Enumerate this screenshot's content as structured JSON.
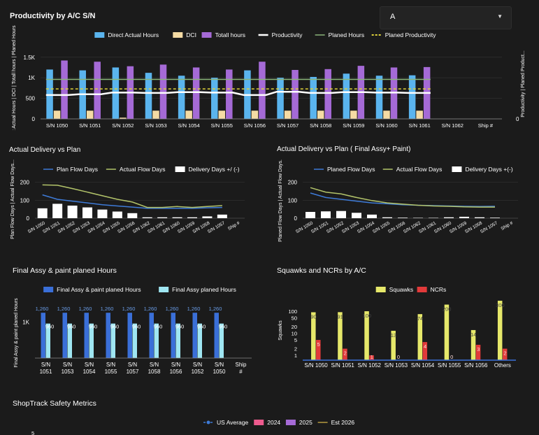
{
  "select": {
    "value": "A"
  },
  "panels": {
    "productivity": {
      "title": "Productivity by A/C S/N"
    },
    "delivery": {
      "title": "Actual Delivery vs Plan"
    },
    "delivery_final": {
      "title": "Actual Delivery vs Plan ( Final Assy+ Paint)"
    },
    "final_assy": {
      "title": "Final Assy & paint planed Hours"
    },
    "squawks": {
      "title": "Squawks and NCRs by A/C"
    },
    "safety": {
      "title": "ShopTrack Safety Metrics"
    }
  },
  "colors": {
    "blue": "#5ab4ee",
    "beige": "#f5dba4",
    "purple": "#a56ad6",
    "green": "#8ab57a",
    "yellow": "#e0d33b",
    "darkblue": "#3a6fd8",
    "lightblue": "#9fe6f2",
    "red": "#e23a3a",
    "pink": "#ee5b8e",
    "gold": "#b59a40"
  },
  "chart_data": [
    {
      "id": "productivity",
      "type": "bar",
      "categories": [
        "S/N 1050",
        "S/N 1051",
        "S/N 1052",
        "S/N 1053",
        "S/N 1054",
        "S/N 1055",
        "S/N 1056",
        "S/N 1057",
        "S/N 1058",
        "S/N 1059",
        "S/N 1060",
        "S/N 1061",
        "S/N 1062",
        "Ship #"
      ],
      "series": [
        {
          "name": "Direct Actual Hours",
          "kind": "bar",
          "values": [
            1200,
            1180,
            1250,
            1120,
            1050,
            1000,
            1180,
            1000,
            1020,
            1100,
            1050,
            1060,
            null,
            null
          ]
        },
        {
          "name": "DCI",
          "kind": "bar",
          "values": [
            200,
            200,
            30,
            200,
            200,
            200,
            200,
            200,
            200,
            200,
            200,
            200,
            null,
            null
          ]
        },
        {
          "name": "Totall hours",
          "kind": "bar",
          "values": [
            1420,
            1390,
            1280,
            1320,
            1250,
            1200,
            1390,
            1190,
            1210,
            1290,
            1250,
            1260,
            null,
            null
          ]
        },
        {
          "name": "Productivity",
          "kind": "line",
          "values": [
            580,
            600,
            640,
            630,
            650,
            640,
            580,
            660,
            630,
            650,
            640,
            630,
            null,
            null
          ]
        },
        {
          "name": "Planed Hours",
          "kind": "line",
          "values": [
            960,
            960,
            960,
            960,
            960,
            960,
            960,
            960,
            960,
            960,
            960,
            960,
            null,
            null
          ]
        },
        {
          "name": "Planed Productivity",
          "kind": "dash",
          "values": [
            730,
            730,
            730,
            730,
            730,
            730,
            730,
            730,
            730,
            730,
            730,
            730,
            null,
            null
          ]
        }
      ],
      "y_ticks": [
        "0",
        "500",
        "1K",
        "1.5K"
      ],
      "ylim": [
        0,
        1700
      ],
      "ylabel": "Direct Actual Hours | DCI | Totall hours | Planed Hours",
      "y2label": "Productivity | Planed Product...",
      "y2_ticks": [
        "0"
      ]
    },
    {
      "id": "delivery",
      "type": "line",
      "categories": [
        "S/N 1050",
        "S/N 1051",
        "S/N 1052",
        "S/N 1053",
        "S/N 1054",
        "S/N 1055",
        "S/N 1056",
        "S/N 1062",
        "S/N 1061",
        "S/N 1060",
        "S/N 1059",
        "S/N 1058",
        "S/N 1057",
        "Ship #"
      ],
      "series": [
        {
          "name": "Plan Flow Days",
          "kind": "line",
          "values": [
            130,
            105,
            95,
            85,
            75,
            68,
            62,
            55,
            55,
            55,
            55,
            58,
            60,
            null
          ]
        },
        {
          "name": "Actual Flow Days",
          "kind": "line",
          "values": [
            185,
            183,
            165,
            145,
            125,
            105,
            90,
            60,
            60,
            65,
            60,
            65,
            70,
            null
          ]
        },
        {
          "name": "Delivery Days +/ (-)",
          "kind": "bar",
          "values": [
            55,
            80,
            70,
            60,
            48,
            37,
            28,
            5,
            5,
            5,
            5,
            10,
            20,
            null
          ]
        }
      ],
      "y_ticks": [
        "0",
        "100",
        "200"
      ],
      "ylim": [
        0,
        210
      ],
      "ylabel": "Plan Flow Days | Actual Flow Days..."
    },
    {
      "id": "delivery_final",
      "type": "line",
      "categories": [
        "S/N 1050",
        "S/N 1051",
        "S/N 1052",
        "S/N 1053",
        "S/N 1054",
        "S/N 1055",
        "S/N 1056",
        "S/N 1062",
        "S/N 1061",
        "S/N 1060",
        "S/N 1059",
        "S/N 1058",
        "S/N 1057",
        "Ship #"
      ],
      "series": [
        {
          "name": "Planed Flow Days",
          "kind": "line",
          "values": [
            140,
            115,
            105,
            95,
            85,
            80,
            75,
            72,
            70,
            68,
            66,
            65,
            66,
            null
          ]
        },
        {
          "name": "Actual Flow Days",
          "kind": "line",
          "values": [
            170,
            145,
            135,
            115,
            98,
            85,
            78,
            72,
            68,
            66,
            63,
            62,
            62,
            null
          ]
        },
        {
          "name": "Delivery Days +(-)",
          "kind": "bar",
          "values": [
            35,
            38,
            40,
            30,
            20,
            5,
            3,
            2,
            2,
            5,
            8,
            5,
            3,
            null
          ]
        }
      ],
      "y_ticks": [
        "0",
        "100",
        "200"
      ],
      "ylim": [
        0,
        210
      ],
      "ylabel": "Planed Flow Days | Actual Flow Days..."
    },
    {
      "id": "final_assy",
      "type": "bar",
      "categories": [
        "S/N 1051",
        "S/N 1053",
        "S/N 1054",
        "S/N 1055",
        "S/N 1057",
        "S/N 1058",
        "S/N 1056",
        "S/N 1052",
        "S/N 1050",
        "Ship #"
      ],
      "series": [
        {
          "name": "Final Assy & paint planed Hours",
          "values": [
            1260,
            1260,
            1260,
            1260,
            1260,
            1260,
            1260,
            1260,
            1260,
            null
          ]
        },
        {
          "name": "Final Assy planed Hours",
          "values": [
            960,
            960,
            960,
            960,
            960,
            960,
            960,
            960,
            960,
            null
          ]
        }
      ],
      "data_labels": [
        [
          "1,260",
          "960"
        ],
        [
          "1,260",
          "960"
        ],
        [
          "1,260",
          "960"
        ],
        [
          "1,260",
          "960"
        ],
        [
          "1,260",
          "960"
        ],
        [
          "1,260",
          "960"
        ],
        [
          "1,260",
          "960"
        ],
        [
          "1,260",
          "960"
        ],
        [
          "1,260",
          "960"
        ],
        [
          "",
          ""
        ]
      ],
      "y_ticks": [
        "1K"
      ],
      "ylabel": "Final Assy & paint planed Hours"
    },
    {
      "id": "squawks",
      "type": "bar",
      "scale": "log",
      "categories": [
        "S/N 1050",
        "S/N 1051",
        "S/N 1052",
        "S/N 1053",
        "S/N 1054",
        "S/N 1055",
        "S/N 1056",
        "Others"
      ],
      "series": [
        {
          "name": "Squawks",
          "values": [
            90,
            91,
            100,
            13,
            74,
            200,
            14,
            300
          ]
        },
        {
          "name": "NCRs",
          "values": [
            5,
            2,
            1,
            0,
            4,
            0,
            3,
            2
          ]
        }
      ],
      "data_labels": [
        [
          "90",
          "5"
        ],
        [
          "91",
          "2"
        ],
        [
          "100",
          "1"
        ],
        [
          "13",
          "0"
        ],
        [
          "74",
          "4"
        ],
        [
          "200",
          "0"
        ],
        [
          "14",
          "3"
        ],
        [
          "300",
          "2"
        ]
      ],
      "y_ticks": [
        "1",
        "2",
        "5",
        "10",
        "20",
        "50",
        "100"
      ],
      "ylabel": "Squawks"
    },
    {
      "id": "safety",
      "type": "bar",
      "series": [
        {
          "name": "US Average",
          "kind": "line"
        },
        {
          "name": "2024",
          "kind": "bar"
        },
        {
          "name": "2025",
          "kind": "bar"
        },
        {
          "name": "Est 2026",
          "kind": "line"
        }
      ],
      "y_ticks": [
        "5"
      ]
    }
  ]
}
